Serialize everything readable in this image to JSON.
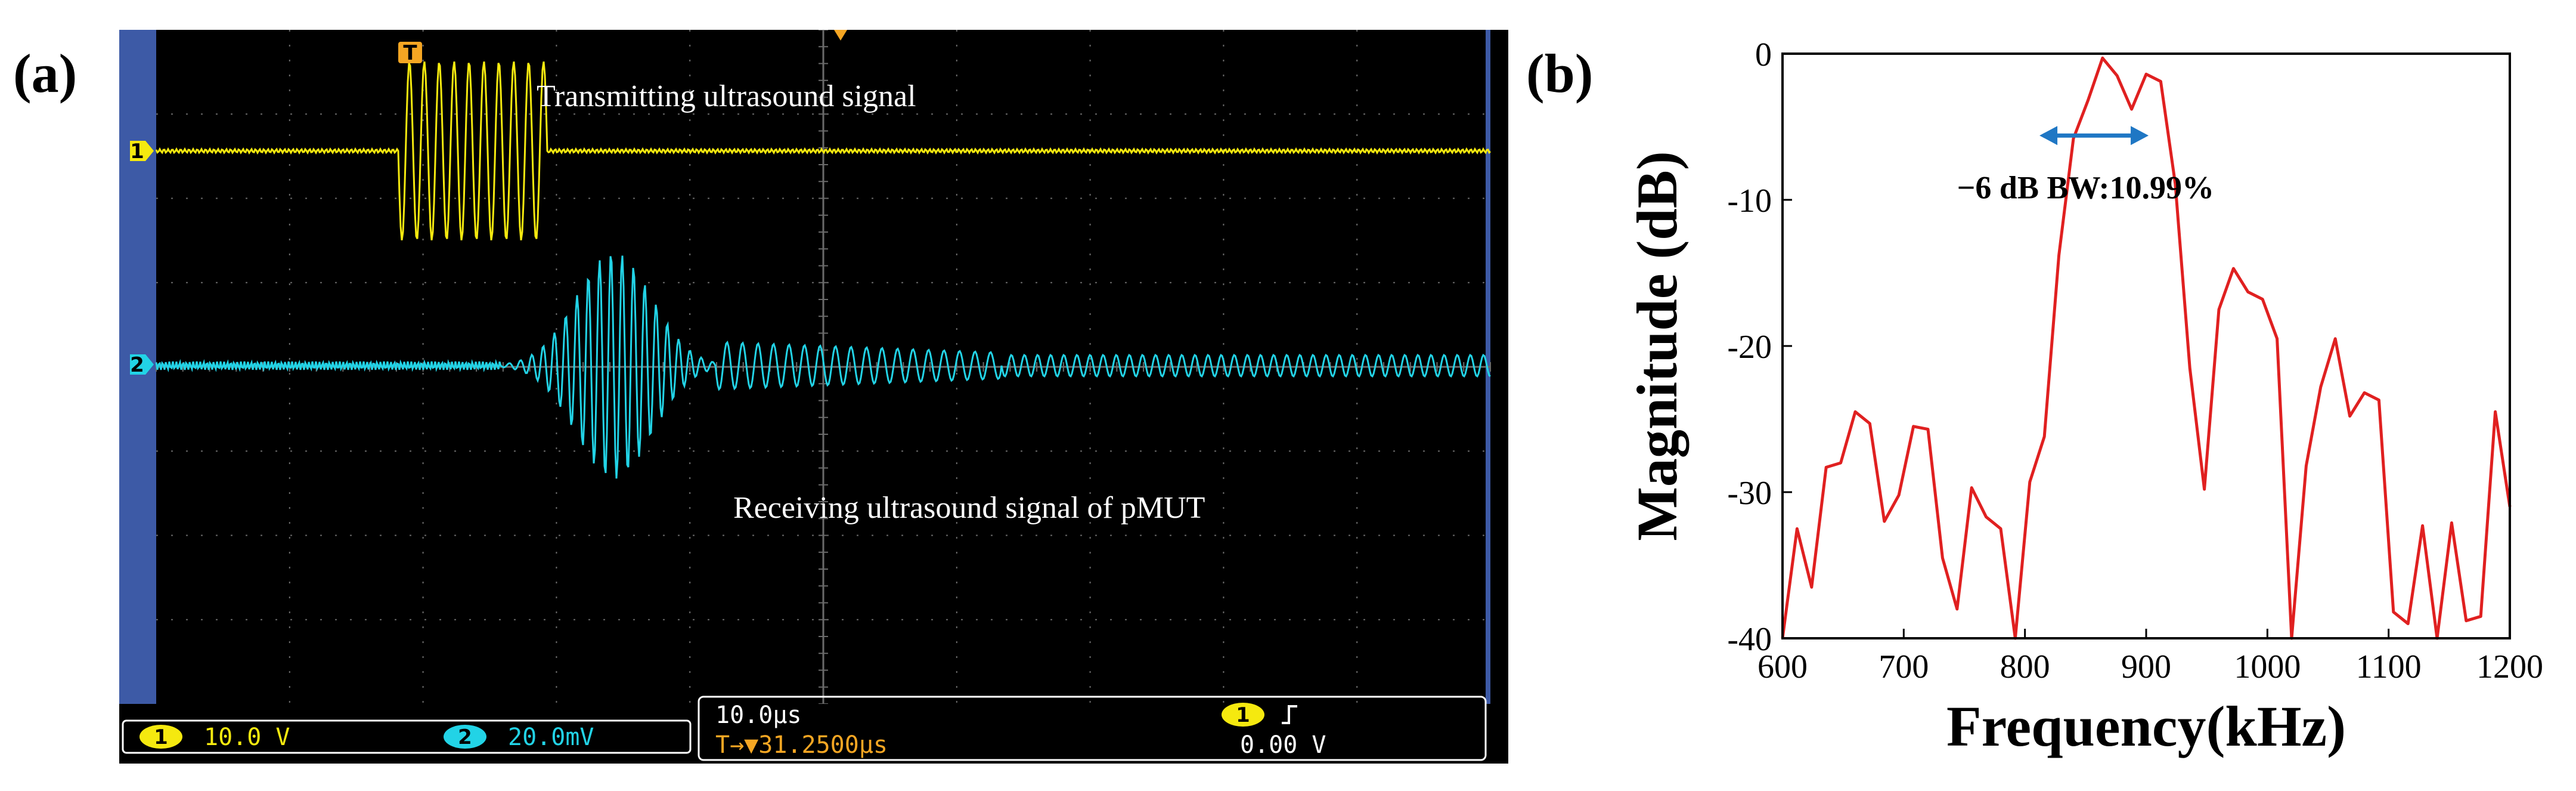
{
  "panels": {
    "a_label": "(a)",
    "b_label": "(b)"
  },
  "scope": {
    "annotations": {
      "transmit": "Transmitting ultrasound signal",
      "receive": "Receiving ultrasound signal of pMUT"
    },
    "trigger_marker": "T",
    "channels": [
      {
        "id": "1",
        "color": "#f5e90f",
        "scale": "10.0 V"
      },
      {
        "id": "2",
        "color": "#22d3e6",
        "scale": "20.0mV"
      }
    ],
    "timebase": "10.0µs",
    "trigger_position": "T→▼31.2500µs",
    "trigger_channel": "1",
    "trigger_slope_icon": "rising-edge-icon",
    "trigger_level": "0.00 V",
    "colors": {
      "background": "#000000",
      "grid": "#6a6a6a",
      "bezel": "#3d5aa6",
      "status_text": "#ffffff",
      "trigger_text": "#f5a623"
    }
  },
  "chart_data": {
    "type": "line",
    "xlabel": "Frequency(kHz)",
    "ylabel": "Magnitude (dB)",
    "xlim": [
      600,
      1200
    ],
    "ylim": [
      -40,
      0
    ],
    "x_ticks": [
      600,
      700,
      800,
      900,
      1000,
      1100,
      1200
    ],
    "y_ticks": [
      0,
      -10,
      -20,
      -30,
      -40
    ],
    "series": [
      {
        "color": "#e02020",
        "x": [
          600,
          612,
          624,
          636,
          648,
          660,
          672,
          684,
          696,
          708,
          720,
          732,
          744,
          756,
          768,
          780,
          792,
          804,
          816,
          828,
          840,
          852,
          864,
          876,
          888,
          900,
          912,
          924,
          936,
          948,
          960,
          972,
          984,
          996,
          1008,
          1020,
          1032,
          1044,
          1056,
          1068,
          1080,
          1092,
          1104,
          1116,
          1128,
          1140,
          1152,
          1164,
          1176,
          1188,
          1200
        ],
        "values": [
          -40,
          -32.5,
          -36.5,
          -28.3,
          -28,
          -24.5,
          -25.3,
          -32,
          -30.2,
          -25.5,
          -25.7,
          -34.5,
          -38,
          -29.7,
          -31.7,
          -32.5,
          -40,
          -29.3,
          -26.2,
          -13.8,
          -5.8,
          -3.2,
          -0.3,
          -1.5,
          -3.8,
          -1.4,
          -1.9,
          -8.9,
          -21.5,
          -29.8,
          -17.5,
          -14.7,
          -16.3,
          -16.8,
          -19.5,
          -40,
          -28.2,
          -22.8,
          -19.5,
          -24.8,
          -23.2,
          -23.7,
          -38.2,
          -39,
          -32.3,
          -40,
          -32.1,
          -38.8,
          -38.5,
          -24.5,
          -31
        ]
      }
    ],
    "annotation": {
      "text": "−6 dB BW:10.99%",
      "arrow_from_khz": 812,
      "arrow_to_khz": 902,
      "arrow_level_db": -5.6,
      "arrow_color": "#1f77c4"
    },
    "grid": false
  }
}
